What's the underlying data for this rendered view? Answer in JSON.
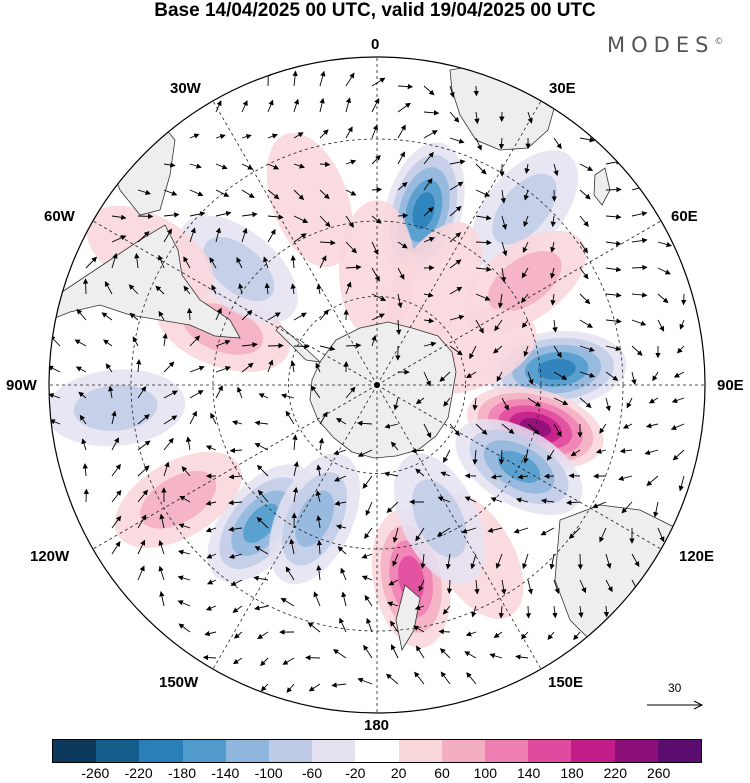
{
  "title": "Base 14/04/2025 00 UTC, valid 19/04/2025 00 UTC",
  "brand": "MODES",
  "brand_mark": "©",
  "longitude_labels": {
    "top": "0",
    "lon_30w": "30W",
    "lon_30e": "30E",
    "lon_60w": "60W",
    "lon_60e": "60E",
    "lon_90w": "90W",
    "lon_90e": "90E",
    "lon_120w": "120W",
    "lon_120e": "120E",
    "lon_150w": "150W",
    "lon_150e": "150E",
    "bottom": "180"
  },
  "reference_vector": {
    "label": "30",
    "icon": "arrow-right-icon"
  },
  "colorbar": {
    "colors": [
      "#0d3a5c",
      "#145e8c",
      "#2a7fb8",
      "#4f9ccc",
      "#8fb6dd",
      "#bfcbe6",
      "#e4e2f1",
      "#ffffff",
      "#f9d6da",
      "#f3aec2",
      "#ee7fb3",
      "#e04a9f",
      "#c21c88",
      "#8c0f7a",
      "#5a0d6e"
    ],
    "ticks": [
      "-260",
      "-220",
      "-180",
      "-140",
      "-100",
      "-60",
      "-20",
      "20",
      "60",
      "100",
      "140",
      "180",
      "220",
      "260"
    ]
  },
  "anomalies": [
    {
      "lon": 15,
      "r": 0.55,
      "v": -180
    },
    {
      "lon": 40,
      "r": 0.7,
      "v": -60
    },
    {
      "lon": 55,
      "r": 0.55,
      "v": 60
    },
    {
      "lon": 85,
      "r": 0.55,
      "v": -180
    },
    {
      "lon": 105,
      "r": 0.5,
      "v": 220
    },
    {
      "lon": 120,
      "r": 0.5,
      "v": -140
    },
    {
      "lon": 150,
      "r": 0.6,
      "v": 40
    },
    {
      "lon": 170,
      "r": 0.6,
      "v": 140
    },
    {
      "lon": 155,
      "r": 0.45,
      "v": -60
    },
    {
      "lon": -140,
      "r": 0.55,
      "v": -140
    },
    {
      "lon": -155,
      "r": 0.45,
      "v": -120
    },
    {
      "lon": -120,
      "r": 0.7,
      "v": 80
    },
    {
      "lon": -95,
      "r": 0.8,
      "v": -60
    },
    {
      "lon": -70,
      "r": 0.5,
      "v": 60
    },
    {
      "lon": -50,
      "r": 0.55,
      "v": -60
    },
    {
      "lon": -20,
      "r": 0.6,
      "v": 40
    },
    {
      "lon": 0,
      "r": 0.35,
      "v": 20
    },
    {
      "lon": 30,
      "r": 0.35,
      "v": 20
    },
    {
      "lon": 70,
      "r": 0.3,
      "v": 20
    },
    {
      "lon": -60,
      "r": 0.8,
      "v": 20
    }
  ]
}
